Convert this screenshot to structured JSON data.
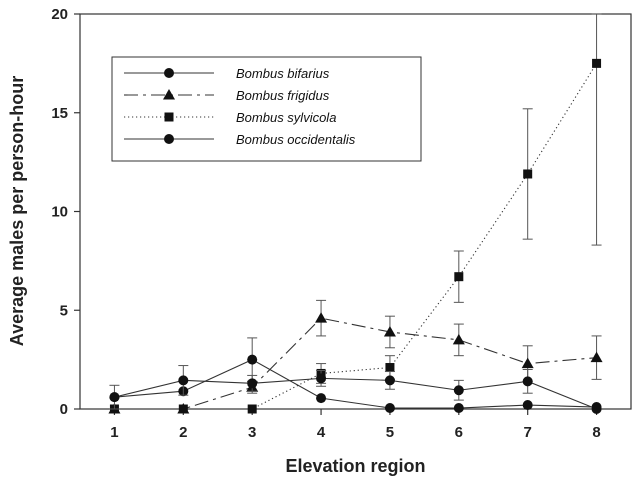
{
  "chart_data": {
    "type": "line",
    "title": "",
    "xlabel": "Elevation region",
    "ylabel": "Average males per person-hour",
    "x": [
      1,
      2,
      3,
      4,
      5,
      6,
      7,
      8
    ],
    "xlim": [
      0.5,
      8.5
    ],
    "ylim": [
      0,
      20
    ],
    "yticks": [
      0,
      5,
      10,
      15,
      20
    ],
    "grid": false,
    "legend_position": "top-left",
    "series": [
      {
        "name": "Bombus bifarius",
        "line_style": "solid",
        "marker": "circle",
        "values": [
          0.6,
          0.9,
          2.5,
          0.55,
          0.05,
          0.05,
          0.2,
          0.1
        ],
        "error": [
          0.0,
          0.0,
          1.1,
          0.0,
          0.0,
          0.0,
          0.0,
          0.0
        ]
      },
      {
        "name": "Bombus frigidus",
        "line_style": "dash",
        "marker": "triangle",
        "values": [
          0.0,
          0.0,
          1.1,
          4.6,
          3.9,
          3.5,
          2.3,
          2.6
        ],
        "error": [
          0.0,
          0.0,
          0.3,
          0.9,
          0.8,
          0.8,
          0.9,
          1.1
        ]
      },
      {
        "name": "Bombus sylvicola",
        "line_style": "dotted",
        "marker": "square",
        "values": [
          0.0,
          0.0,
          0.0,
          1.8,
          2.1,
          6.7,
          11.9,
          17.5
        ],
        "error": [
          0.0,
          0.0,
          0.0,
          0.5,
          0.6,
          1.3,
          3.3,
          9.2
        ]
      },
      {
        "name": "Bombus occidentalis",
        "line_style": "solid",
        "marker": "circle",
        "values": [
          0.6,
          1.45,
          1.3,
          1.55,
          1.45,
          0.95,
          1.4,
          0.0
        ],
        "error": [
          0.6,
          0.75,
          0.4,
          0.4,
          0.45,
          0.5,
          0.6,
          0.0
        ]
      }
    ]
  }
}
